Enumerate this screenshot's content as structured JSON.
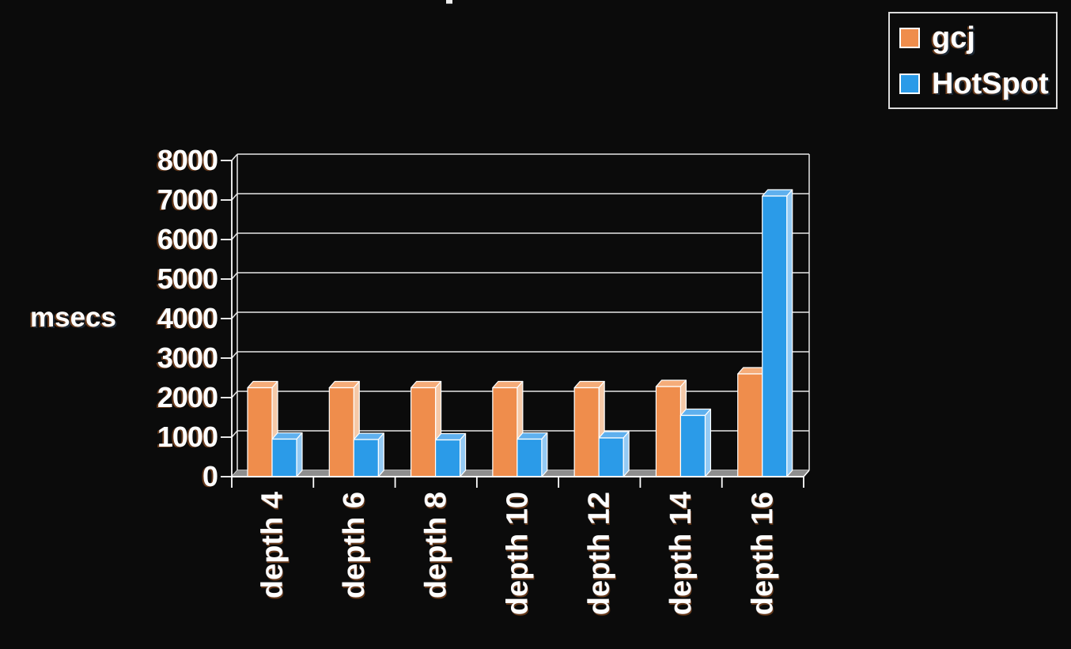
{
  "page": {
    "background": "#0b0b0b"
  },
  "legend": {
    "items": [
      {
        "label": "gcj",
        "color": "#EF8D4C"
      },
      {
        "label": "HotSpot",
        "color": "#2B9BE8"
      }
    ]
  },
  "chart_data": {
    "type": "bar",
    "projection": "3d",
    "title": "",
    "xlabel": "",
    "ylabel": "msecs",
    "categories": [
      "depth 4",
      "depth 6",
      "depth 8",
      "depth 10",
      "depth 12",
      "depth 14",
      "depth 16"
    ],
    "series": [
      {
        "name": "gcj",
        "color": "#EF8D4C",
        "color_top": "#F5AC79",
        "color_side": "#F5C9A8",
        "values": [
          2250,
          2250,
          2250,
          2250,
          2250,
          2280,
          2600
        ]
      },
      {
        "name": "HotSpot",
        "color": "#2B9BE8",
        "color_top": "#5FB0EE",
        "color_side": "#94CAF4",
        "values": [
          950,
          940,
          930,
          950,
          980,
          1550,
          7100
        ]
      }
    ],
    "ylim": [
      0,
      8000
    ],
    "ytick_interval": 1000,
    "yticks": [
      0,
      1000,
      2000,
      3000,
      4000,
      5000,
      6000,
      7000,
      8000
    ],
    "grid": true,
    "legend_position": "top-right",
    "colors": {
      "grid": "#E8E8E8",
      "axis": "#FFFFFF",
      "floor": "#8E8E8E",
      "text": "#FFFFFF"
    }
  }
}
